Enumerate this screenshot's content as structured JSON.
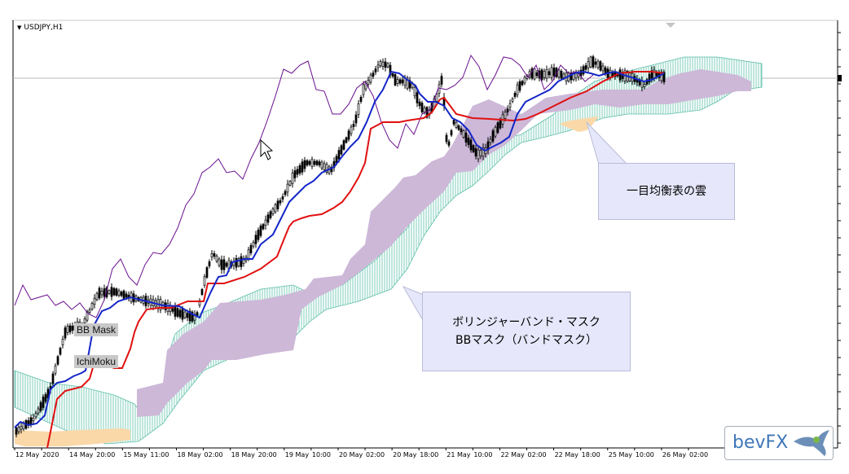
{
  "chart": {
    "symbol_label": "USDJPY,H1",
    "timeframe_marker": "▼",
    "colors": {
      "background": "#ffffff",
      "candle": "#000000",
      "tenkan": "#1426c8",
      "kijun": "#e01010",
      "chikou": "#6a0f8e",
      "kumo_fill": "#86d4c4",
      "kumo_edge": "#5fbfa8",
      "bb_mask": "#cdb8d8",
      "cloud_mask": "#fbd8a8"
    },
    "object_labels": {
      "bb_mask": "BB Mask",
      "ichimoku": "IchiMoku"
    },
    "x_axis_labels": [
      "12 May",
      "2020",
      "14 May",
      "20:00",
      "15 May",
      "11:00",
      "18 May",
      "02:00",
      "18 May",
      "20:00",
      "19 May",
      "10:00",
      "20 May",
      "02:00",
      "20 May",
      "18:00",
      "21 May",
      "10:00",
      "22 May",
      "02:00",
      "22 May",
      "18:00",
      "25 May",
      "10:00",
      "26 May",
      "02:00"
    ]
  },
  "callouts": {
    "ichimoku_cloud": "一目均衡表の雲",
    "bb_mask_line1": "ボリンジャーバンド・マスク",
    "bb_mask_line2": "BBマスク（バンドマスク）"
  },
  "logo": {
    "text": "bevFX"
  }
}
